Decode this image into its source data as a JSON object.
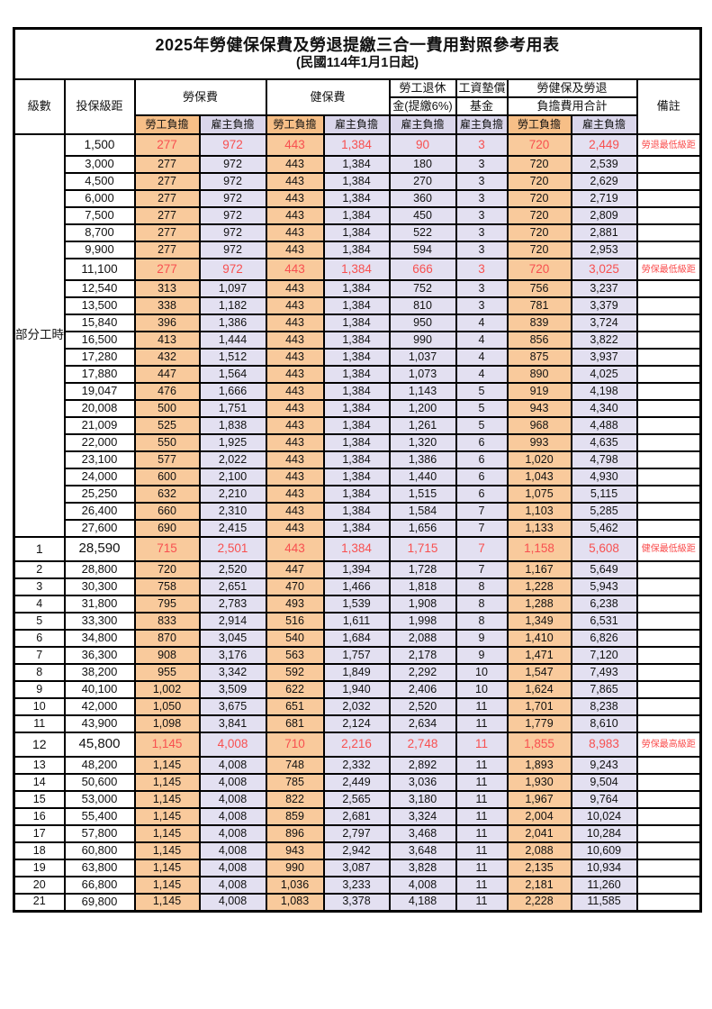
{
  "title": "2025年勞健保保費及勞退提繳三合一費用對照參考用表",
  "subtitle": "(民國114年1月1日起)",
  "header": {
    "level": "級數",
    "bracket": "投保級距",
    "labor_insurance": "勞保費",
    "health_insurance": "健保費",
    "pension_line1": "勞工退休",
    "pension_line2": "金(提繳6%)",
    "wage_fund_line1": "工資墊償",
    "wage_fund_line2": "基金",
    "total_line1": "勞健保及勞退",
    "total_line2": "負擔費用合計",
    "remark": "備註",
    "employee": "勞工負擔",
    "employer": "雇主負擔"
  },
  "part_time": {
    "label": "部分工時",
    "span": 23
  },
  "colors": {
    "employee_bg": "#F9CA9C",
    "employer_bg": "#E3E0F1",
    "subheader_employee_bg": "#F7BF87",
    "subheader_employer_bg": "#DAD6EB",
    "highlight_red": "#F85050",
    "remark_red": "#FA4B4B",
    "border": "#000000"
  },
  "rows": [
    [
      "",
      "1,500",
      "277",
      "972",
      "443",
      "1,384",
      "90",
      "3",
      "720",
      "2,449",
      "勞退最低級距",
      true
    ],
    [
      "",
      "3,000",
      "277",
      "972",
      "443",
      "1,384",
      "180",
      "3",
      "720",
      "2,539",
      "",
      false
    ],
    [
      "",
      "4,500",
      "277",
      "972",
      "443",
      "1,384",
      "270",
      "3",
      "720",
      "2,629",
      "",
      false
    ],
    [
      "",
      "6,000",
      "277",
      "972",
      "443",
      "1,384",
      "360",
      "3",
      "720",
      "2,719",
      "",
      false
    ],
    [
      "",
      "7,500",
      "277",
      "972",
      "443",
      "1,384",
      "450",
      "3",
      "720",
      "2,809",
      "",
      false
    ],
    [
      "",
      "8,700",
      "277",
      "972",
      "443",
      "1,384",
      "522",
      "3",
      "720",
      "2,881",
      "",
      false
    ],
    [
      "",
      "9,900",
      "277",
      "972",
      "443",
      "1,384",
      "594",
      "3",
      "720",
      "2,953",
      "",
      false
    ],
    [
      "",
      "11,100",
      "277",
      "972",
      "443",
      "1,384",
      "666",
      "3",
      "720",
      "3,025",
      "勞保最低級距",
      true
    ],
    [
      "",
      "12,540",
      "313",
      "1,097",
      "443",
      "1,384",
      "752",
      "3",
      "756",
      "3,237",
      "",
      false
    ],
    [
      "",
      "13,500",
      "338",
      "1,182",
      "443",
      "1,384",
      "810",
      "3",
      "781",
      "3,379",
      "",
      false
    ],
    [
      "",
      "15,840",
      "396",
      "1,386",
      "443",
      "1,384",
      "950",
      "4",
      "839",
      "3,724",
      "",
      false
    ],
    [
      "",
      "16,500",
      "413",
      "1,444",
      "443",
      "1,384",
      "990",
      "4",
      "856",
      "3,822",
      "",
      false
    ],
    [
      "",
      "17,280",
      "432",
      "1,512",
      "443",
      "1,384",
      "1,037",
      "4",
      "875",
      "3,937",
      "",
      false
    ],
    [
      "",
      "17,880",
      "447",
      "1,564",
      "443",
      "1,384",
      "1,073",
      "4",
      "890",
      "4,025",
      "",
      false
    ],
    [
      "",
      "19,047",
      "476",
      "1,666",
      "443",
      "1,384",
      "1,143",
      "5",
      "919",
      "4,198",
      "",
      false
    ],
    [
      "",
      "20,008",
      "500",
      "1,751",
      "443",
      "1,384",
      "1,200",
      "5",
      "943",
      "4,340",
      "",
      false
    ],
    [
      "",
      "21,009",
      "525",
      "1,838",
      "443",
      "1,384",
      "1,261",
      "5",
      "968",
      "4,488",
      "",
      false
    ],
    [
      "",
      "22,000",
      "550",
      "1,925",
      "443",
      "1,384",
      "1,320",
      "6",
      "993",
      "4,635",
      "",
      false
    ],
    [
      "",
      "23,100",
      "577",
      "2,022",
      "443",
      "1,384",
      "1,386",
      "6",
      "1,020",
      "4,798",
      "",
      false
    ],
    [
      "",
      "24,000",
      "600",
      "2,100",
      "443",
      "1,384",
      "1,440",
      "6",
      "1,043",
      "4,930",
      "",
      false
    ],
    [
      "",
      "25,250",
      "632",
      "2,210",
      "443",
      "1,384",
      "1,515",
      "6",
      "1,075",
      "5,115",
      "",
      false
    ],
    [
      "",
      "26,400",
      "660",
      "2,310",
      "443",
      "1,384",
      "1,584",
      "7",
      "1,103",
      "5,285",
      "",
      false
    ],
    [
      "",
      "27,600",
      "690",
      "2,415",
      "443",
      "1,384",
      "1,656",
      "7",
      "1,133",
      "5,462",
      "",
      false
    ],
    [
      "1",
      "28,590",
      "715",
      "2,501",
      "443",
      "1,384",
      "1,715",
      "7",
      "1,158",
      "5,608",
      "健保最低級距",
      true
    ],
    [
      "2",
      "28,800",
      "720",
      "2,520",
      "447",
      "1,394",
      "1,728",
      "7",
      "1,167",
      "5,649",
      "",
      false
    ],
    [
      "3",
      "30,300",
      "758",
      "2,651",
      "470",
      "1,466",
      "1,818",
      "8",
      "1,228",
      "5,943",
      "",
      false
    ],
    [
      "4",
      "31,800",
      "795",
      "2,783",
      "493",
      "1,539",
      "1,908",
      "8",
      "1,288",
      "6,238",
      "",
      false
    ],
    [
      "5",
      "33,300",
      "833",
      "2,914",
      "516",
      "1,611",
      "1,998",
      "8",
      "1,349",
      "6,531",
      "",
      false
    ],
    [
      "6",
      "34,800",
      "870",
      "3,045",
      "540",
      "1,684",
      "2,088",
      "9",
      "1,410",
      "6,826",
      "",
      false
    ],
    [
      "7",
      "36,300",
      "908",
      "3,176",
      "563",
      "1,757",
      "2,178",
      "9",
      "1,471",
      "7,120",
      "",
      false
    ],
    [
      "8",
      "38,200",
      "955",
      "3,342",
      "592",
      "1,849",
      "2,292",
      "10",
      "1,547",
      "7,493",
      "",
      false
    ],
    [
      "9",
      "40,100",
      "1,002",
      "3,509",
      "622",
      "1,940",
      "2,406",
      "10",
      "1,624",
      "7,865",
      "",
      false
    ],
    [
      "10",
      "42,000",
      "1,050",
      "3,675",
      "651",
      "2,032",
      "2,520",
      "11",
      "1,701",
      "8,238",
      "",
      false
    ],
    [
      "11",
      "43,900",
      "1,098",
      "3,841",
      "681",
      "2,124",
      "2,634",
      "11",
      "1,779",
      "8,610",
      "",
      false
    ],
    [
      "12",
      "45,800",
      "1,145",
      "4,008",
      "710",
      "2,216",
      "2,748",
      "11",
      "1,855",
      "8,983",
      "勞保最高級距",
      true
    ],
    [
      "13",
      "48,200",
      "1,145",
      "4,008",
      "748",
      "2,332",
      "2,892",
      "11",
      "1,893",
      "9,243",
      "",
      false
    ],
    [
      "14",
      "50,600",
      "1,145",
      "4,008",
      "785",
      "2,449",
      "3,036",
      "11",
      "1,930",
      "9,504",
      "",
      false
    ],
    [
      "15",
      "53,000",
      "1,145",
      "4,008",
      "822",
      "2,565",
      "3,180",
      "11",
      "1,967",
      "9,764",
      "",
      false
    ],
    [
      "16",
      "55,400",
      "1,145",
      "4,008",
      "859",
      "2,681",
      "3,324",
      "11",
      "2,004",
      "10,024",
      "",
      false
    ],
    [
      "17",
      "57,800",
      "1,145",
      "4,008",
      "896",
      "2,797",
      "3,468",
      "11",
      "2,041",
      "10,284",
      "",
      false
    ],
    [
      "18",
      "60,800",
      "1,145",
      "4,008",
      "943",
      "2,942",
      "3,648",
      "11",
      "2,088",
      "10,609",
      "",
      false
    ],
    [
      "19",
      "63,800",
      "1,145",
      "4,008",
      "990",
      "3,087",
      "3,828",
      "11",
      "2,135",
      "10,934",
      "",
      false
    ],
    [
      "20",
      "66,800",
      "1,145",
      "4,008",
      "1,036",
      "3,233",
      "4,008",
      "11",
      "2,181",
      "11,260",
      "",
      false
    ],
    [
      "21",
      "69,800",
      "1,145",
      "4,008",
      "1,083",
      "3,378",
      "4,188",
      "11",
      "2,228",
      "11,585",
      "",
      false
    ]
  ]
}
